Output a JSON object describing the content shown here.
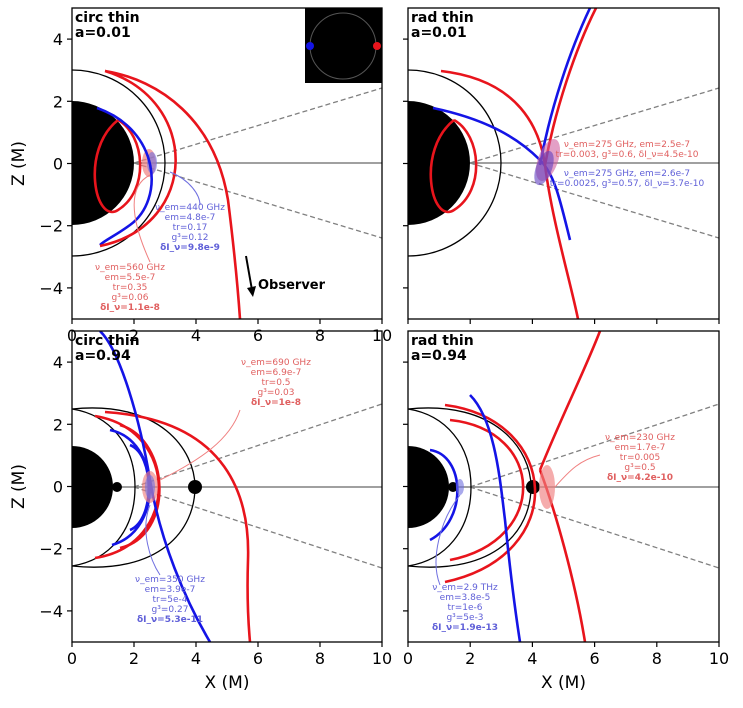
{
  "colors": {
    "red": "#e8141c",
    "blue": "#1414e6",
    "red_light": "#f08080",
    "blue_light": "#7070e0",
    "gray": "#808080"
  },
  "chart_data": [
    {
      "type": "line",
      "id": "tl",
      "title": "circ thin",
      "spin": "a=0.01",
      "xlim": [
        0,
        10
      ],
      "ylim": [
        -5,
        5
      ],
      "xticks": [
        "0",
        "2",
        "4",
        "6",
        "8",
        "10"
      ],
      "yticks": [
        "−4",
        "−2",
        "0",
        "2",
        "4"
      ],
      "xlabel": "",
      "ylabel": "Z (M)",
      "series": [
        {
          "name": "red photon ring",
          "color": "red"
        },
        {
          "name": "blue photon ring",
          "color": "blue"
        }
      ],
      "annotations": [
        {
          "color": "blue",
          "lines": [
            "ν_em=440 GHz",
            "em=4.8e-7",
            "tr=0.17",
            "g³=0.12",
            "δI_ν=9.8e-9"
          ]
        },
        {
          "color": "red",
          "lines": [
            "ν_em=560 GHz",
            "em=5.5e-7",
            "tr=0.35",
            "g³=0.06",
            "δI_ν=1.1e-8"
          ]
        }
      ],
      "observer_label": "Observer"
    },
    {
      "type": "line",
      "id": "tr",
      "title": "rad thin",
      "spin": "a=0.01",
      "xlim": [
        0,
        10
      ],
      "ylim": [
        -5,
        5
      ],
      "xticks": [],
      "yticks": [],
      "annotations": [
        {
          "color": "red",
          "lines": [
            "ν_em=275 GHz, em=2.5e-7",
            "tr=0.003, g³=0.6, δI_ν=4.5e-10"
          ]
        },
        {
          "color": "blue",
          "lines": [
            "ν_em=275 GHz, em=2.6e-7",
            "tr=0.0025, g³=0.57, δI_ν=3.7e-10"
          ]
        }
      ]
    },
    {
      "type": "line",
      "id": "bl",
      "title": "circ thin",
      "spin": "a=0.94",
      "xlim": [
        0,
        10
      ],
      "ylim": [
        -5,
        5
      ],
      "xticks": [
        "0",
        "2",
        "4",
        "6",
        "8",
        "10"
      ],
      "yticks": [
        "−4",
        "−2",
        "0",
        "2",
        "4"
      ],
      "xlabel": "X (M)",
      "ylabel": "Z (M)",
      "annotations": [
        {
          "color": "red",
          "lines": [
            "ν_em=690 GHz",
            "em=6.9e-7",
            "tr=0.5",
            "g³=0.03",
            "δI_ν=1e-8"
          ]
        },
        {
          "color": "blue",
          "lines": [
            "ν_em=350 GHz",
            "em=3.9e-7",
            "tr=5e-4",
            "g³=0.27",
            "δI_ν=5.3e-11"
          ]
        }
      ]
    },
    {
      "type": "line",
      "id": "br",
      "title": "rad thin",
      "spin": "a=0.94",
      "xlim": [
        0,
        10
      ],
      "ylim": [
        -5,
        5
      ],
      "xticks": [
        "0",
        "2",
        "4",
        "6",
        "8",
        "10"
      ],
      "yticks": [],
      "xlabel": "X (M)",
      "annotations": [
        {
          "color": "red",
          "lines": [
            "ν_em=230 GHz",
            "em=1.7e-7",
            "tr=0.005",
            "g³=0.5",
            "δI_ν=4.2e-10"
          ]
        },
        {
          "color": "blue",
          "lines": [
            "ν_em=2.9 THz",
            "em=3.8e-5",
            "tr=1e-6",
            "g³=5e-3",
            "δI_ν=1.9e-13"
          ]
        }
      ]
    }
  ]
}
